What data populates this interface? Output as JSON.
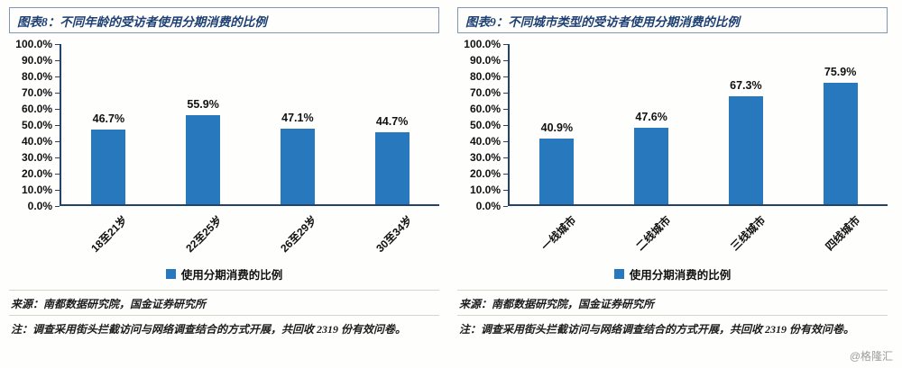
{
  "colors": {
    "bar": "#2878BE",
    "axis": "#24436B",
    "title_text": "#1D3F72",
    "title_border": "#8096B8",
    "watermark": "#9C9C9C"
  },
  "watermark": "@格隆汇",
  "chart_data": [
    {
      "type": "bar",
      "title": "图表8：不同年龄的受访者使用分期消费的比例",
      "categories": [
        "18至21岁",
        "22至25岁",
        "26至29岁",
        "30至34岁"
      ],
      "values": [
        46.7,
        55.9,
        47.1,
        44.7
      ],
      "value_labels": [
        "46.7%",
        "55.9%",
        "47.1%",
        "44.7%"
      ],
      "legend": "使用分期消费的比例",
      "legend_position": "bottom",
      "grid": false,
      "ylim": [
        0,
        100
      ],
      "yticks": [
        "100.0%",
        "90.0%",
        "80.0%",
        "70.0%",
        "60.0%",
        "50.0%",
        "40.0%",
        "30.0%",
        "20.0%",
        "10.0%",
        "0.0%"
      ],
      "xlabel": "",
      "ylabel": "",
      "source": "来源：南都数据研究院，国金证券研究所",
      "note": "注：调查采用街头拦截访问与网络调查结合的方式开展，共回收 2319 份有效问卷。"
    },
    {
      "type": "bar",
      "title": "图表9：不同城市类型的受访者使用分期消费的比例",
      "categories": [
        "一线城市",
        "二线城市",
        "三线城市",
        "四线城市"
      ],
      "values": [
        40.9,
        47.6,
        67.3,
        75.9
      ],
      "value_labels": [
        "40.9%",
        "47.6%",
        "67.3%",
        "75.9%"
      ],
      "legend": "使用分期消费的比例",
      "legend_position": "bottom",
      "grid": false,
      "ylim": [
        0,
        100
      ],
      "yticks": [
        "100.0%",
        "90.0%",
        "80.0%",
        "70.0%",
        "60.0%",
        "50.0%",
        "40.0%",
        "30.0%",
        "20.0%",
        "10.0%",
        "0.0%"
      ],
      "xlabel": "",
      "ylabel": "",
      "source": "来源：南都数据研究院，国金证券研究所",
      "note": "注：调查采用街头拦截访问与网络调查结合的方式开展，共回收 2319 份有效问卷。"
    }
  ]
}
